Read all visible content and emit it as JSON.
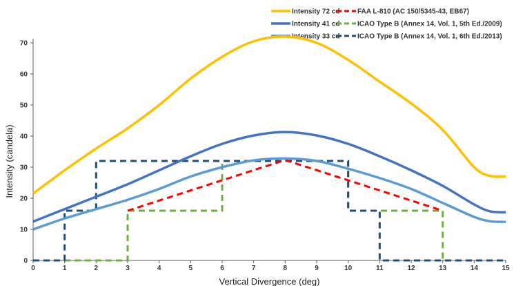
{
  "chart_data": {
    "type": "line",
    "xlabel": "Vertical Divergence (deg)",
    "ylabel": "Intensity (candela)",
    "xlim": [
      0,
      15
    ],
    "ylim": [
      0,
      70
    ],
    "x_ticks": [
      "0",
      "1",
      "2",
      "3",
      "4",
      "5",
      "6",
      "7",
      "8",
      "9",
      "10",
      "11",
      "12",
      "13",
      "14",
      "15"
    ],
    "y_ticks": [
      "0",
      "10",
      "20",
      "30",
      "40",
      "50",
      "60",
      "70"
    ],
    "grid": false,
    "legend_position": "top-right",
    "series": [
      {
        "name": "Intensity 72 cd",
        "color": "#FFC000",
        "style": "solid",
        "x": [
          0,
          1,
          2,
          3,
          4,
          5,
          6,
          7,
          8,
          9,
          10,
          11,
          12,
          13,
          14,
          14.5,
          15
        ],
        "y": [
          21.5,
          29,
          36,
          42.5,
          50,
          58.5,
          65.5,
          70.5,
          72,
          70,
          64.5,
          57.5,
          50.5,
          42,
          30,
          27.2,
          27
        ]
      },
      {
        "name": "Intensity 41 cd",
        "color": "#4472C4",
        "style": "solid",
        "x": [
          0,
          1,
          2,
          3,
          4,
          5,
          6,
          7,
          8,
          9,
          10,
          11,
          12,
          13,
          14,
          14.5,
          15
        ],
        "y": [
          12.5,
          16.5,
          20.5,
          24.5,
          29,
          33.5,
          37.5,
          40.2,
          41.3,
          40.2,
          37.5,
          33.5,
          29,
          24,
          18,
          15.8,
          15.5
        ]
      },
      {
        "name": "Intensity 33 cd",
        "color": "#5B9BD5",
        "style": "solid",
        "x": [
          0,
          1,
          2,
          3,
          4,
          5,
          6,
          7,
          8,
          9,
          10,
          11,
          12,
          13,
          14,
          14.5,
          15
        ],
        "y": [
          10,
          13.5,
          16.5,
          19.5,
          23,
          27,
          30,
          32.2,
          32.8,
          32,
          29.5,
          26.5,
          23,
          18.5,
          14,
          12.6,
          12.4
        ]
      },
      {
        "name": "FAA L-810 (AC 150/5345-43, EB67)",
        "color": "#FF0000",
        "style": "dashed",
        "x": [
          3,
          8,
          13
        ],
        "y": [
          16,
          32.3,
          16
        ]
      },
      {
        "name": "ICAO Type B (Annex 14, Vol. 1, 5th Ed./2009)",
        "color": "#70AD47",
        "style": "dashed",
        "x": [
          0,
          3,
          3,
          6,
          6,
          8,
          10,
          10,
          13,
          13,
          15
        ],
        "y": [
          0,
          0,
          16,
          16,
          32,
          32,
          32,
          16,
          16,
          0,
          0
        ]
      },
      {
        "name": "ICAO Type B (Annex 14, Vol. 1, 6th Ed./2013)",
        "color": "#1F4E79",
        "style": "dashed",
        "x": [
          0,
          1,
          1,
          2,
          2,
          10,
          10,
          11,
          11,
          15
        ],
        "y": [
          0,
          0,
          16,
          16,
          32,
          32,
          16,
          16,
          0,
          0
        ]
      }
    ]
  }
}
